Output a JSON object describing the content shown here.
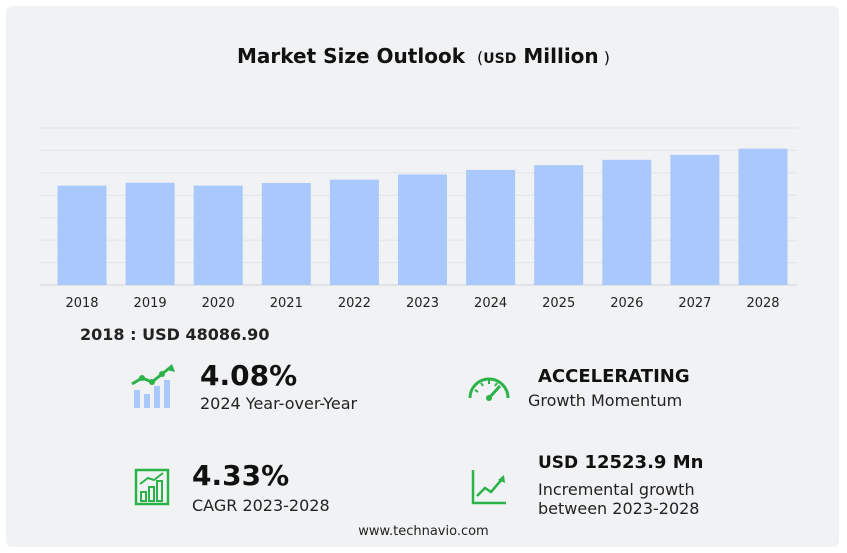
{
  "chart_data": {
    "type": "bar",
    "title": "Market Size Outlook",
    "title_unit_prefix": "USD",
    "title_unit": "Million",
    "categories": [
      "2018",
      "2019",
      "2020",
      "2021",
      "2022",
      "2023",
      "2024",
      "2025",
      "2026",
      "2027",
      "2028"
    ],
    "values": [
      48086.9,
      49500,
      48100,
      49400,
      51000,
      53500,
      55700,
      58000,
      60600,
      63000,
      66000
    ],
    "ylim": [
      0,
      76000
    ],
    "grid": true,
    "bar_color": "#a9c8fb"
  },
  "summary": {
    "base_label": "2018 : USD  48086.90"
  },
  "metrics": {
    "yoy": {
      "value": "4.08%",
      "label": "2024 Year-over-Year"
    },
    "momentum": {
      "value": "ACCELERATING",
      "label": "Growth Momentum"
    },
    "cagr": {
      "value": "4.33%",
      "label": "CAGR 2023-2028"
    },
    "incremental": {
      "currency": "USD",
      "value": "12523.9 Mn",
      "label_line1": "Incremental growth",
      "label_line2": "between 2023-2028"
    }
  },
  "icons": {
    "yoy": "bar-trend-icon",
    "momentum": "speedometer-icon",
    "cagr": "growth-chart-icon",
    "incremental": "line-chart-icon",
    "accent_color": "#2bb34a"
  },
  "footer": {
    "source": "www.technavio.com"
  }
}
